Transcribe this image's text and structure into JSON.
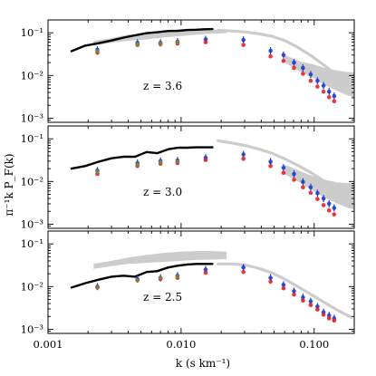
{
  "chart_data": [
    {
      "type": "scatter",
      "annotation": "z = 3.6",
      "xlabel": "k (s km⁻¹)",
      "ylabel": "π⁻¹k P_F(k)",
      "xscale": "log",
      "yscale": "log",
      "xlim": [
        0.001,
        0.2
      ],
      "ylim": [
        0.0008,
        0.2
      ],
      "x_tick_labels": [
        "0.001",
        "0.010",
        "0.100"
      ],
      "y_tick_labels": [
        "10⁻¹",
        "10⁻²",
        "10⁻³"
      ],
      "grid": false,
      "series": [
        {
          "color": "#000000",
          "style": "line",
          "x": [
            0.0015,
            0.0019,
            0.0024,
            0.003,
            0.0037,
            0.0045,
            0.0055,
            0.0066,
            0.008,
            0.0095,
            0.0112,
            0.013,
            0.015,
            0.0172
          ],
          "y": [
            0.037,
            0.05,
            0.057,
            0.066,
            0.077,
            0.087,
            0.098,
            0.103,
            0.11,
            0.111,
            0.116,
            0.118,
            0.121,
            0.122
          ]
        },
        {
          "color": "#cccccc",
          "style": "line",
          "x": [
            0.019,
            0.024,
            0.03,
            0.038,
            0.048,
            0.06,
            0.075,
            0.095,
            0.12,
            0.15,
            0.19
          ],
          "y": [
            0.114,
            0.11,
            0.105,
            0.095,
            0.083,
            0.066,
            0.046,
            0.029,
            0.017,
            0.01,
            0.0065
          ]
        },
        {
          "color": "#cccccc",
          "style": "band",
          "x": [
            0.0022,
            0.003,
            0.004,
            0.0055,
            0.0075,
            0.01,
            0.013,
            0.017,
            0.022
          ],
          "y_low": [
            0.05,
            0.058,
            0.065,
            0.07,
            0.078,
            0.084,
            0.09,
            0.095,
            0.098
          ],
          "y_high": [
            0.065,
            0.075,
            0.09,
            0.098,
            0.105,
            0.11,
            0.115,
            0.118,
            0.12
          ]
        },
        {
          "color": "#cccccc",
          "style": "band",
          "x": [
            0.06,
            0.08,
            0.1,
            0.12,
            0.15,
            0.18,
            0.2
          ],
          "y_low": [
            0.02,
            0.012,
            0.0085,
            0.006,
            0.0043,
            0.0034,
            0.003
          ],
          "y_high": [
            0.03,
            0.021,
            0.018,
            0.015,
            0.013,
            0.012,
            0.012
          ]
        },
        {
          "color": "#1f3fd6",
          "style": "markers",
          "x": [
            0.00235,
            0.0047,
            0.007,
            0.0094,
            0.0153,
            0.0294,
            0.047,
            0.0588,
            0.0705,
            0.0823,
            0.0941,
            0.1058,
            0.1176,
            0.1294,
            0.1412
          ],
          "y": [
            0.04,
            0.058,
            0.058,
            0.062,
            0.07,
            0.068,
            0.038,
            0.03,
            0.02,
            0.015,
            0.0105,
            0.0075,
            0.0058,
            0.0042,
            0.0033
          ]
        },
        {
          "color": "#e8202a",
          "style": "markers",
          "x": [
            0.00235,
            0.0047,
            0.007,
            0.0094,
            0.0153,
            0.0294,
            0.047,
            0.0588,
            0.0705,
            0.0823,
            0.0941,
            0.1058,
            0.1176,
            0.1294,
            0.1412
          ],
          "y": [
            0.034,
            0.052,
            0.054,
            0.056,
            0.06,
            0.052,
            0.028,
            0.022,
            0.015,
            0.011,
            0.0075,
            0.0055,
            0.0042,
            0.0031,
            0.0025
          ]
        },
        {
          "color": "#7a8a3a",
          "style": "markers",
          "x": [
            0.00235,
            0.0047,
            0.007,
            0.0094
          ],
          "y": [
            0.037,
            0.054,
            0.056,
            0.06
          ]
        }
      ]
    },
    {
      "type": "scatter",
      "annotation": "z = 3.0",
      "xscale": "log",
      "yscale": "log",
      "xlim": [
        0.001,
        0.2
      ],
      "ylim": [
        0.0008,
        0.2
      ],
      "grid": false,
      "series": [
        {
          "color": "#000000",
          "style": "line",
          "x": [
            0.0015,
            0.0019,
            0.0024,
            0.003,
            0.0037,
            0.0045,
            0.0055,
            0.0066,
            0.008,
            0.0095,
            0.0112,
            0.013,
            0.015,
            0.0172
          ],
          "y": [
            0.02,
            0.023,
            0.029,
            0.035,
            0.038,
            0.038,
            0.049,
            0.046,
            0.057,
            0.062,
            0.062,
            0.063,
            0.063,
            0.063
          ]
        },
        {
          "color": "#cccccc",
          "style": "line",
          "x": [
            0.019,
            0.024,
            0.03,
            0.038,
            0.048,
            0.06,
            0.075,
            0.095,
            0.12,
            0.15,
            0.19
          ],
          "y": [
            0.09,
            0.08,
            0.07,
            0.058,
            0.046,
            0.034,
            0.024,
            0.016,
            0.01,
            0.0068,
            0.0045
          ]
        },
        {
          "color": "#cccccc",
          "style": "band",
          "x": [
            0.06,
            0.08,
            0.1,
            0.12,
            0.15,
            0.18,
            0.2
          ],
          "y_low": [
            0.015,
            0.009,
            0.0058,
            0.0042,
            0.003,
            0.0024,
            0.0022
          ],
          "y_high": [
            0.025,
            0.017,
            0.013,
            0.011,
            0.0095,
            0.0092,
            0.009
          ]
        },
        {
          "color": "#1f3fd6",
          "style": "markers",
          "x": [
            0.00235,
            0.0047,
            0.007,
            0.0094,
            0.0153,
            0.0294,
            0.047,
            0.0588,
            0.0705,
            0.0823,
            0.0941,
            0.1058,
            0.1176,
            0.1294,
            0.1412
          ],
          "y": [
            0.018,
            0.027,
            0.03,
            0.031,
            0.036,
            0.043,
            0.029,
            0.021,
            0.015,
            0.0098,
            0.0073,
            0.0053,
            0.004,
            0.003,
            0.0024
          ]
        },
        {
          "color": "#e8202a",
          "style": "markers",
          "x": [
            0.00235,
            0.0047,
            0.007,
            0.0094,
            0.0153,
            0.0294,
            0.047,
            0.0588,
            0.0705,
            0.0823,
            0.0941,
            0.1058,
            0.1176,
            0.1294,
            0.1412
          ],
          "y": [
            0.015,
            0.023,
            0.026,
            0.027,
            0.032,
            0.034,
            0.023,
            0.016,
            0.011,
            0.0073,
            0.0054,
            0.0039,
            0.0028,
            0.0021,
            0.0017
          ]
        },
        {
          "color": "#7a8a3a",
          "style": "markers",
          "x": [
            0.00235,
            0.0047,
            0.007,
            0.0094
          ],
          "y": [
            0.017,
            0.025,
            0.028,
            0.029
          ]
        }
      ]
    },
    {
      "type": "scatter",
      "annotation": "z = 2.5",
      "xscale": "log",
      "yscale": "log",
      "xlim": [
        0.001,
        0.2
      ],
      "ylim": [
        0.0008,
        0.2
      ],
      "grid": false,
      "series": [
        {
          "color": "#000000",
          "style": "line",
          "x": [
            0.0015,
            0.0019,
            0.0024,
            0.003,
            0.0037,
            0.0045,
            0.0055,
            0.0066,
            0.008,
            0.0095,
            0.0112,
            0.013,
            0.015,
            0.0172
          ],
          "y": [
            0.0095,
            0.012,
            0.0145,
            0.017,
            0.018,
            0.017,
            0.022,
            0.023,
            0.028,
            0.031,
            0.033,
            0.034,
            0.034,
            0.034
          ]
        },
        {
          "color": "#cccccc",
          "style": "line",
          "x": [
            0.019,
            0.024,
            0.03,
            0.038,
            0.048,
            0.06,
            0.075,
            0.095,
            0.12,
            0.15,
            0.19
          ],
          "y": [
            0.034,
            0.034,
            0.032,
            0.027,
            0.021,
            0.015,
            0.01,
            0.0065,
            0.0042,
            0.0028,
            0.0019
          ]
        },
        {
          "color": "#cccccc",
          "style": "band",
          "x": [
            0.0022,
            0.003,
            0.004,
            0.0055,
            0.0075,
            0.01,
            0.013,
            0.017,
            0.022
          ],
          "y_low": [
            0.026,
            0.03,
            0.034,
            0.036,
            0.038,
            0.04,
            0.042,
            0.043,
            0.044
          ],
          "y_high": [
            0.034,
            0.04,
            0.048,
            0.055,
            0.062,
            0.066,
            0.068,
            0.068,
            0.066
          ]
        },
        {
          "color": "#1f3fd6",
          "style": "markers",
          "x": [
            0.00235,
            0.0047,
            0.007,
            0.0094,
            0.0153,
            0.0294,
            0.047,
            0.0588,
            0.0705,
            0.0823,
            0.0941,
            0.1058,
            0.1176,
            0.1294,
            0.1412
          ],
          "y": [
            0.01,
            0.015,
            0.016,
            0.018,
            0.025,
            0.028,
            0.016,
            0.011,
            0.0078,
            0.0056,
            0.0045,
            0.0034,
            0.0025,
            0.0021,
            0.0018
          ]
        },
        {
          "color": "#e8202a",
          "style": "markers",
          "x": [
            0.00235,
            0.0047,
            0.007,
            0.0094,
            0.0153,
            0.0294,
            0.047,
            0.0588,
            0.0705,
            0.0823,
            0.0941,
            0.1058,
            0.1176,
            0.1294,
            0.1412
          ],
          "y": [
            0.0095,
            0.014,
            0.015,
            0.016,
            0.021,
            0.022,
            0.013,
            0.0091,
            0.0065,
            0.0047,
            0.0037,
            0.0029,
            0.0022,
            0.0018,
            0.0016
          ]
        },
        {
          "color": "#7a8a3a",
          "style": "markers",
          "x": [
            0.00235,
            0.0047,
            0.007,
            0.0094
          ],
          "y": [
            0.0098,
            0.014,
            0.016,
            0.017
          ]
        }
      ]
    }
  ]
}
